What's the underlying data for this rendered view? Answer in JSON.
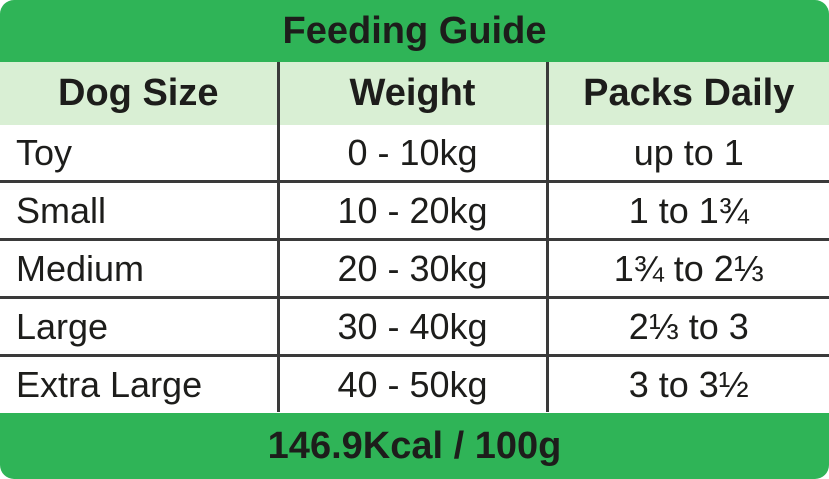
{
  "header": {
    "title": "Feeding Guide"
  },
  "table": {
    "columns": [
      "Dog Size",
      "Weight",
      "Packs Daily"
    ],
    "rows": [
      [
        "Toy",
        "0 - 10kg",
        "up to 1"
      ],
      [
        "Small",
        "10 - 20kg",
        "1 to 1¾"
      ],
      [
        "Medium",
        "20 - 30kg",
        "1¾ to 2⅓"
      ],
      [
        "Large",
        "30 - 40kg",
        "2⅓ to 3"
      ],
      [
        "Extra Large",
        "40 - 50kg",
        "3 to 3½"
      ]
    ]
  },
  "footer": {
    "text": "146.9Kcal / 100g"
  }
}
